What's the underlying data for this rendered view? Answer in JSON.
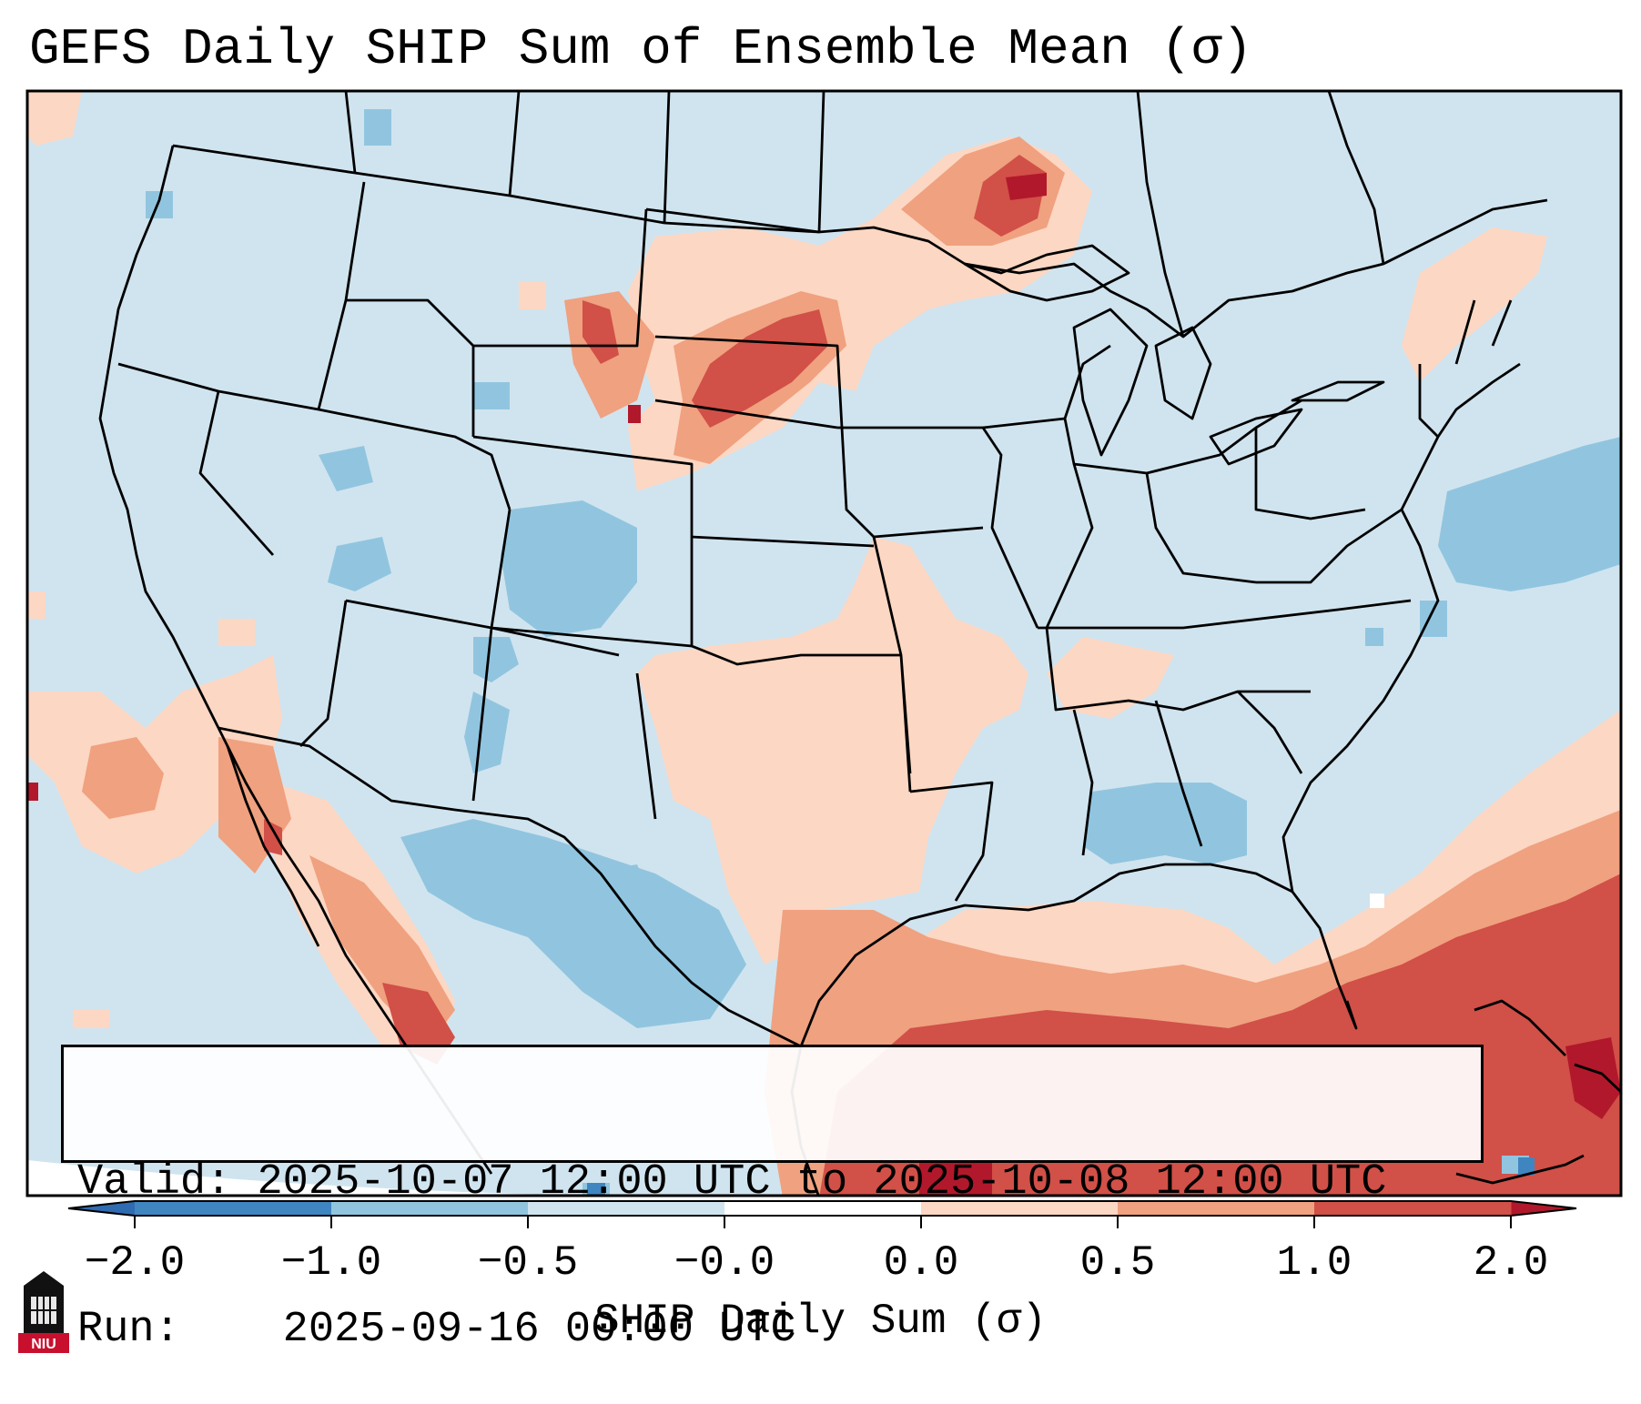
{
  "title": "GEFS Daily SHIP Sum of Ensemble Mean (σ)",
  "info": {
    "valid_label": "Valid:",
    "valid_value": "2025-10-07 12:00 UTC to 2025-10-08 12:00 UTC",
    "run_label": "Run:",
    "run_value": "2025-09-16 00:00 UTC"
  },
  "colorbar": {
    "label": "SHIP Daily Sum (σ)",
    "ticks": [
      "−2.0",
      "−1.0",
      "−0.5",
      "−0.0",
      "0.0",
      "0.5",
      "1.0",
      "2.0"
    ],
    "colors": [
      "#3f86c1",
      "#91c5df",
      "#d0e4ef",
      "#ffffff",
      "#fcd7c3",
      "#f0a17f",
      "#d15048"
    ],
    "extend_low_color": "#2f6bb0",
    "extend_high_color": "#b2182b"
  },
  "map": {
    "background_color": "#d0e4ef",
    "anomaly_regions": [
      {
        "name": "Northern Plains",
        "level": "0.5 to 1.0"
      },
      {
        "name": "Lake Superior area",
        "level": "1.0 to 2.0"
      },
      {
        "name": "Gulf of Mexico",
        "level": "0.5 to 1.0"
      },
      {
        "name": "Caribbean",
        "level": "1.0 to 2.0"
      },
      {
        "name": "Mexico plateau",
        "level": "-1.0 to -0.5"
      },
      {
        "name": "Colorado Rockies",
        "level": "-1.0 to -0.5"
      },
      {
        "name": "Western Atlantic",
        "level": "-1.0 to -0.5"
      }
    ]
  },
  "logo_text": "NIU"
}
